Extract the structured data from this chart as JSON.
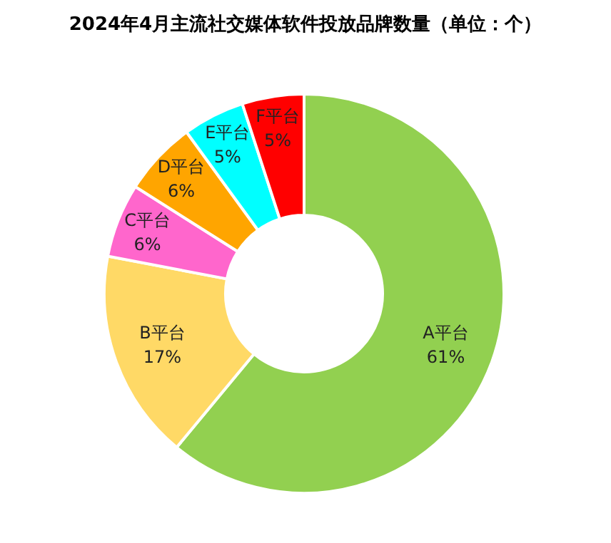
{
  "chart_data": {
    "type": "donut",
    "title": "2024年4月主流社交媒体软件投放品牌数量（单位：个）",
    "categories": [
      "A平台",
      "B平台",
      "C平台",
      "D平台",
      "E平台",
      "F平台"
    ],
    "values": [
      61,
      17,
      6,
      6,
      5,
      5
    ],
    "value_labels": [
      "61%",
      "17%",
      "6%",
      "6%",
      "5%",
      "5%"
    ],
    "colors": [
      "#92d050",
      "#ffd966",
      "#ff66cc",
      "#ffa500",
      "#00ffff",
      "#ff0000"
    ],
    "legend": false
  }
}
